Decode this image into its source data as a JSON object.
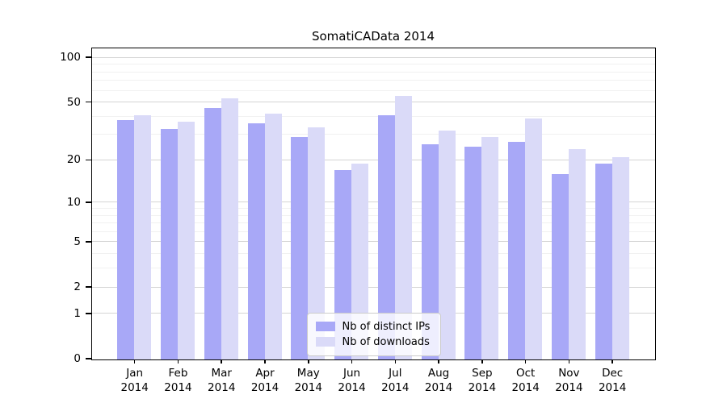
{
  "chart_data": {
    "type": "bar",
    "title": "SomatiCAData 2014",
    "categories": [
      "Jan",
      "Feb",
      "Mar",
      "Apr",
      "May",
      "Jun",
      "Jul",
      "Aug",
      "Sep",
      "Oct",
      "Nov",
      "Dec"
    ],
    "category_sublabel": "2014",
    "series": [
      {
        "name": "Nb of distinct IPs",
        "color": "#a8a8f7",
        "values": [
          38,
          33,
          46,
          36,
          29,
          17,
          41,
          26,
          25,
          27,
          16,
          19
        ]
      },
      {
        "name": "Nb of downloads",
        "color": "#dadaf8",
        "values": [
          41,
          37,
          53,
          42,
          34,
          19,
          55,
          32,
          29,
          39,
          24,
          21
        ]
      }
    ],
    "yscale": "log1p",
    "ylim": [
      0,
      115
    ],
    "y_ticks": [
      0,
      1,
      2,
      5,
      10,
      20,
      50,
      100
    ],
    "y_minor_gridlines": [
      3,
      4,
      6,
      7,
      8,
      9,
      30,
      40,
      60,
      70,
      80,
      90
    ],
    "grid": true,
    "legend_position": "bottom-center",
    "axis_color": "#000000",
    "major_grid_color": "#d4d4d4",
    "minor_grid_color": "#f1f1f1"
  }
}
